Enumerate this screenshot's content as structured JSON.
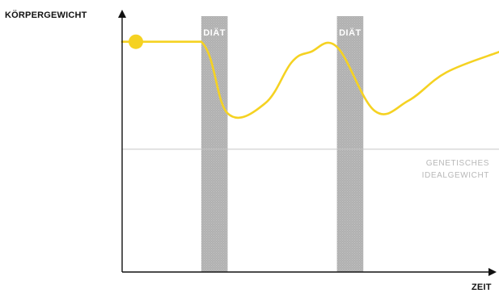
{
  "chart_data": {
    "type": "line",
    "title": "",
    "ylabel": "KÖRPERGEWICHT",
    "xlabel": "ZEIT",
    "xlim": [
      0,
      100
    ],
    "ylim": [
      0,
      100
    ],
    "grid": false,
    "series": [
      {
        "color": "#f5d222",
        "start_marker": true,
        "x": [
          0,
          7,
          21,
          28,
          38,
          45,
          50,
          57,
          67,
          76,
          86,
          100
        ],
        "y": [
          90,
          90,
          90,
          62,
          66,
          82,
          86,
          88,
          63,
          67,
          78,
          86
        ]
      }
    ],
    "bands": [
      {
        "label": "DIÄT",
        "x_start": 21,
        "x_end": 28
      },
      {
        "label": "DIÄT",
        "x_start": 57,
        "x_end": 64
      }
    ],
    "reference_line": {
      "y": 48,
      "label_lines": [
        "GENETISCHES",
        "IDEALGEWICHT"
      ]
    },
    "colors": {
      "line": "#f5d222",
      "band": "#b3b3b3",
      "reference": "#c8c8c8",
      "axis": "#111111"
    }
  }
}
